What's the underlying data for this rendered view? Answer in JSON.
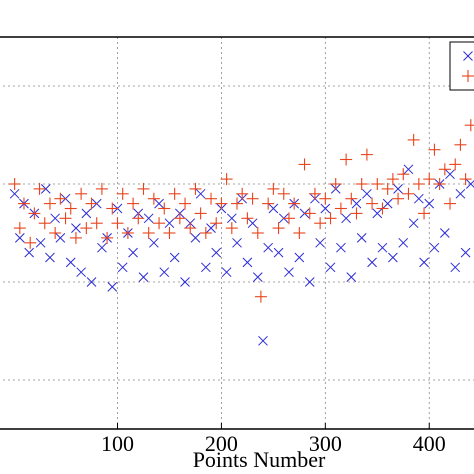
{
  "chart_data": {
    "type": "scatter",
    "xlabel": "Points Number",
    "ylabel": "",
    "xlim": [
      -15,
      445
    ],
    "ylim": [
      0,
      8
    ],
    "x_ticks": [
      100,
      200,
      300,
      400
    ],
    "x_tick_labels": [
      "100",
      "200",
      "300",
      "400"
    ],
    "grid": true,
    "legend_position": "top-right",
    "colors": {
      "series_x": "#2b2bd6",
      "series_plus": "#e8431a"
    },
    "series": [
      {
        "marker": "x",
        "points": [
          [
            1,
            4.8
          ],
          [
            6,
            3.9
          ],
          [
            10,
            4.6
          ],
          [
            15,
            3.6
          ],
          [
            20,
            4.4
          ],
          [
            26,
            3.8
          ],
          [
            31,
            4.9
          ],
          [
            35,
            3.5
          ],
          [
            40,
            4.3
          ],
          [
            45,
            3.9
          ],
          [
            50,
            4.7
          ],
          [
            55,
            3.4
          ],
          [
            60,
            4.1
          ],
          [
            65,
            3.2
          ],
          [
            70,
            4.4
          ],
          [
            75,
            3.0
          ],
          [
            80,
            4.6
          ],
          [
            85,
            3.7
          ],
          [
            90,
            3.9
          ],
          [
            95,
            2.9
          ],
          [
            100,
            4.5
          ],
          [
            105,
            3.3
          ],
          [
            110,
            4.0
          ],
          [
            115,
            3.6
          ],
          [
            120,
            4.4
          ],
          [
            125,
            3.1
          ],
          [
            130,
            4.3
          ],
          [
            135,
            3.8
          ],
          [
            140,
            4.6
          ],
          [
            145,
            3.2
          ],
          [
            150,
            4.2
          ],
          [
            155,
            3.5
          ],
          [
            160,
            4.4
          ],
          [
            165,
            3.0
          ],
          [
            170,
            4.2
          ],
          [
            175,
            3.9
          ],
          [
            180,
            4.8
          ],
          [
            185,
            3.3
          ],
          [
            190,
            4.1
          ],
          [
            195,
            3.6
          ],
          [
            200,
            4.5
          ],
          [
            205,
            3.2
          ],
          [
            210,
            4.3
          ],
          [
            215,
            3.8
          ],
          [
            220,
            4.7
          ],
          [
            225,
            3.4
          ],
          [
            230,
            4.2
          ],
          [
            235,
            3.1
          ],
          [
            240,
            1.8
          ],
          [
            245,
            3.7
          ],
          [
            250,
            4.5
          ],
          [
            255,
            3.6
          ],
          [
            260,
            4.3
          ],
          [
            265,
            3.2
          ],
          [
            270,
            4.6
          ],
          [
            275,
            3.5
          ],
          [
            280,
            4.4
          ],
          [
            285,
            3.0
          ],
          [
            290,
            4.7
          ],
          [
            295,
            3.8
          ],
          [
            300,
            4.5
          ],
          [
            305,
            3.3
          ],
          [
            310,
            4.9
          ],
          [
            315,
            3.7
          ],
          [
            320,
            4.3
          ],
          [
            325,
            3.1
          ],
          [
            330,
            4.6
          ],
          [
            335,
            3.9
          ],
          [
            340,
            4.8
          ],
          [
            345,
            3.4
          ],
          [
            350,
            4.4
          ],
          [
            355,
            3.7
          ],
          [
            360,
            4.6
          ],
          [
            365,
            3.5
          ],
          [
            370,
            4.9
          ],
          [
            375,
            3.8
          ],
          [
            380,
            5.3
          ],
          [
            385,
            4.2
          ],
          [
            390,
            4.7
          ],
          [
            395,
            3.4
          ],
          [
            400,
            4.6
          ],
          [
            405,
            3.7
          ],
          [
            410,
            5.0
          ],
          [
            415,
            4.0
          ],
          [
            420,
            5.2
          ],
          [
            425,
            3.3
          ],
          [
            430,
            4.8
          ],
          [
            435,
            3.6
          ],
          [
            440,
            5.0
          ]
        ]
      },
      {
        "marker": "+",
        "points": [
          [
            1,
            5.0
          ],
          [
            6,
            4.1
          ],
          [
            10,
            4.6
          ],
          [
            16,
            3.8
          ],
          [
            20,
            4.4
          ],
          [
            25,
            4.9
          ],
          [
            30,
            4.2
          ],
          [
            35,
            4.6
          ],
          [
            40,
            4.0
          ],
          [
            45,
            4.7
          ],
          [
            50,
            4.3
          ],
          [
            55,
            4.5
          ],
          [
            60,
            3.9
          ],
          [
            65,
            4.8
          ],
          [
            70,
            4.1
          ],
          [
            75,
            4.6
          ],
          [
            80,
            4.2
          ],
          [
            85,
            4.9
          ],
          [
            90,
            3.9
          ],
          [
            95,
            4.5
          ],
          [
            100,
            4.2
          ],
          [
            105,
            4.8
          ],
          [
            110,
            4.0
          ],
          [
            115,
            4.6
          ],
          [
            120,
            4.3
          ],
          [
            125,
            4.9
          ],
          [
            130,
            4.0
          ],
          [
            135,
            4.7
          ],
          [
            140,
            4.2
          ],
          [
            145,
            4.5
          ],
          [
            150,
            4.0
          ],
          [
            155,
            4.8
          ],
          [
            160,
            4.3
          ],
          [
            165,
            4.6
          ],
          [
            170,
            4.1
          ],
          [
            175,
            4.9
          ],
          [
            180,
            4.4
          ],
          [
            185,
            4.0
          ],
          [
            190,
            4.7
          ],
          [
            195,
            4.2
          ],
          [
            200,
            4.6
          ],
          [
            205,
            5.1
          ],
          [
            210,
            4.1
          ],
          [
            215,
            4.6
          ],
          [
            220,
            4.8
          ],
          [
            225,
            4.3
          ],
          [
            230,
            4.7
          ],
          [
            235,
            4.0
          ],
          [
            238,
            2.7
          ],
          [
            245,
            4.6
          ],
          [
            250,
            4.9
          ],
          [
            255,
            4.1
          ],
          [
            260,
            4.8
          ],
          [
            265,
            4.3
          ],
          [
            270,
            4.6
          ],
          [
            275,
            4.0
          ],
          [
            280,
            5.4
          ],
          [
            285,
            4.4
          ],
          [
            290,
            4.8
          ],
          [
            295,
            4.2
          ],
          [
            300,
            4.7
          ],
          [
            305,
            4.3
          ],
          [
            310,
            5.0
          ],
          [
            315,
            4.5
          ],
          [
            320,
            5.5
          ],
          [
            325,
            4.7
          ],
          [
            330,
            4.4
          ],
          [
            335,
            5.0
          ],
          [
            340,
            5.6
          ],
          [
            345,
            4.6
          ],
          [
            350,
            5.0
          ],
          [
            355,
            4.5
          ],
          [
            360,
            4.9
          ],
          [
            365,
            5.1
          ],
          [
            370,
            4.7
          ],
          [
            375,
            5.2
          ],
          [
            380,
            4.8
          ],
          [
            385,
            5.9
          ],
          [
            390,
            5.0
          ],
          [
            395,
            4.4
          ],
          [
            400,
            5.1
          ],
          [
            405,
            5.7
          ],
          [
            410,
            5.0
          ],
          [
            415,
            5.3
          ],
          [
            420,
            4.6
          ],
          [
            425,
            5.4
          ],
          [
            430,
            5.8
          ],
          [
            435,
            5.1
          ],
          [
            440,
            6.2
          ]
        ]
      }
    ]
  }
}
